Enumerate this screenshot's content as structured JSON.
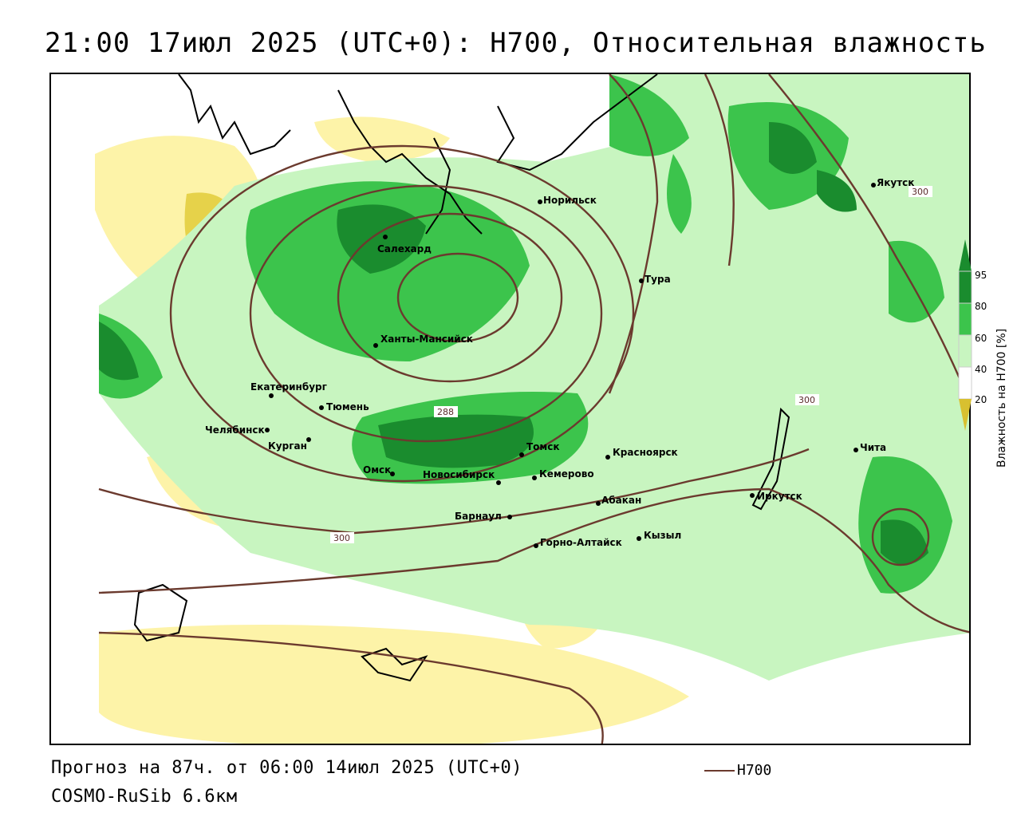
{
  "title": "21:00 17июл 2025 (UTC+0): H700, Относительная влажность",
  "footer": {
    "forecast": "Прогноз на 87ч. от 06:00 14июл 2025 (UTC+0)",
    "model": "COSMO-RuSib 6.6км",
    "legend_label": "H700"
  },
  "colorbar": {
    "label": "Влажность на H700 [%]",
    "ticks": [
      "95",
      "80",
      "60",
      "40",
      "20"
    ],
    "colors": {
      "c95": "#1a8c2e",
      "c80": "#3cc44c",
      "c60": "#c8f5c0",
      "c40": "#ffffff",
      "c20": "#fdf3a8",
      "c0": "#d8c030"
    }
  },
  "contour_color": "#6b3a2e",
  "contour_labels": [
    "288",
    "300",
    "300",
    "300"
  ],
  "cities": [
    {
      "name": "Салехард"
    },
    {
      "name": "Норильск"
    },
    {
      "name": "Тура"
    },
    {
      "name": "Якутск"
    },
    {
      "name": "Ханты-Мансийск"
    },
    {
      "name": "Екатеринбург"
    },
    {
      "name": "Тюмень"
    },
    {
      "name": "Челябинск"
    },
    {
      "name": "Курган"
    },
    {
      "name": "Омск"
    },
    {
      "name": "Новосибирск"
    },
    {
      "name": "Томск"
    },
    {
      "name": "Кемерово"
    },
    {
      "name": "Красноярск"
    },
    {
      "name": "Абакан"
    },
    {
      "name": "Барнаул"
    },
    {
      "name": "Горно-Алтайск"
    },
    {
      "name": "Кызыл"
    },
    {
      "name": "Иркутск"
    },
    {
      "name": "Чита"
    }
  ]
}
